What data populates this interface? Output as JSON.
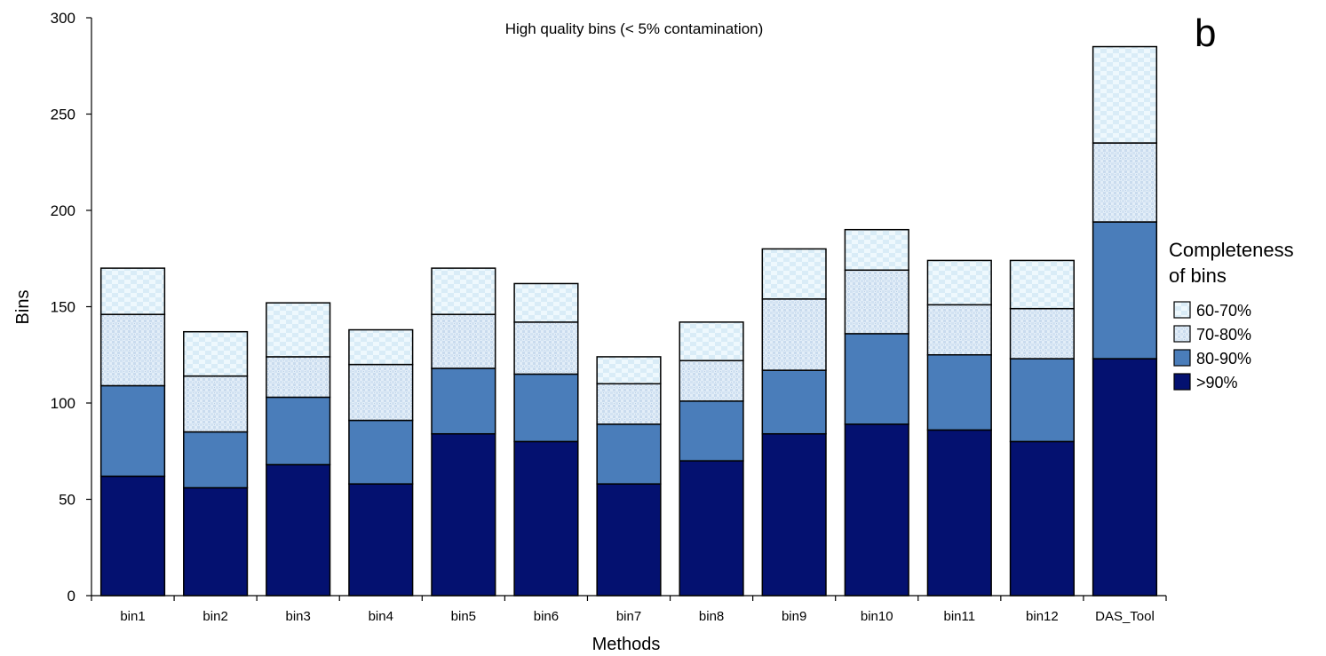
{
  "chart_data": {
    "type": "bar",
    "stacked": true,
    "title": "High quality bins (< 5% contamination)",
    "panel_label": "b",
    "xlabel": "Methods",
    "ylabel": "Bins",
    "ylim": [
      0,
      300
    ],
    "yticks": [
      0,
      50,
      100,
      150,
      200,
      250,
      300
    ],
    "grid": false,
    "legend_position": "right",
    "legend_title_lines": [
      "Completeness",
      "of bins"
    ],
    "categories": [
      "bin1",
      "bin2",
      "bin3",
      "bin4",
      "bin5",
      "bin6",
      "bin7",
      "bin8",
      "bin9",
      "bin10",
      "bin11",
      "bin12",
      "DAS_Tool"
    ],
    "series": [
      {
        "name": ">90%",
        "color": "#041170",
        "values": [
          62,
          56,
          68,
          58,
          84,
          80,
          58,
          70,
          84,
          89,
          86,
          80,
          123
        ]
      },
      {
        "name": "80-90%",
        "color": "#4a7dba",
        "values": [
          47,
          29,
          35,
          33,
          34,
          35,
          31,
          31,
          33,
          47,
          39,
          43,
          71
        ]
      },
      {
        "name": "70-80%",
        "color": "#dde9f5",
        "pattern": "dotted",
        "values": [
          37,
          29,
          21,
          29,
          28,
          27,
          21,
          21,
          37,
          33,
          26,
          26,
          41
        ]
      },
      {
        "name": "60-70%",
        "color": "#eef8fd",
        "pattern": "checker",
        "values": [
          24,
          23,
          28,
          18,
          24,
          20,
          14,
          20,
          26,
          21,
          23,
          25,
          50
        ]
      }
    ],
    "legend_order": [
      "60-70%",
      "70-80%",
      "80-90%",
      ">90%"
    ]
  }
}
